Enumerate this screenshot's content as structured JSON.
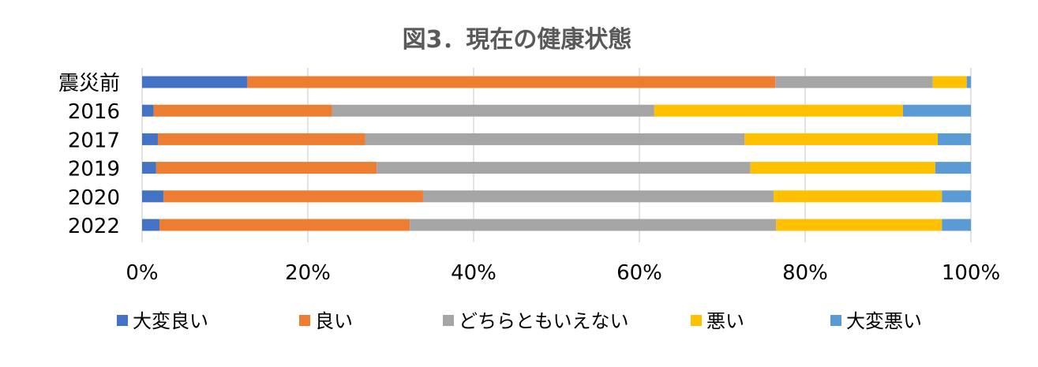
{
  "chart_data": {
    "type": "bar",
    "orientation": "horizontal",
    "stacked": "percent",
    "title": "図3．現在の健康状態",
    "categories": [
      "震災前",
      "2016",
      "2017",
      "2019",
      "2020",
      "2022"
    ],
    "series": [
      {
        "name": "大変良い",
        "color": "#4472C4",
        "values": [
          12.7,
          1.4,
          1.9,
          1.7,
          2.6,
          2.1
        ]
      },
      {
        "name": "良い",
        "color": "#ED7D31",
        "values": [
          63.7,
          21.5,
          25.0,
          26.6,
          31.3,
          30.2
        ]
      },
      {
        "name": "どちらともいえない",
        "color": "#A5A5A5",
        "values": [
          19.0,
          38.9,
          45.8,
          45.1,
          42.3,
          44.2
        ]
      },
      {
        "name": "悪い",
        "color": "#FFC000",
        "values": [
          4.1,
          30.0,
          23.3,
          22.3,
          20.3,
          20.0
        ]
      },
      {
        "name": "大変悪い",
        "color": "#5B9BD5",
        "values": [
          0.5,
          8.2,
          4.0,
          4.3,
          3.5,
          3.5
        ]
      }
    ],
    "xlim": [
      0,
      100
    ],
    "x_ticks": [
      "0%",
      "20%",
      "40%",
      "60%",
      "80%",
      "100%"
    ],
    "grid": true,
    "legend_position": "bottom"
  }
}
